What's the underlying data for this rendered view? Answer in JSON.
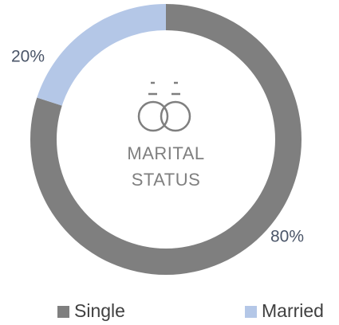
{
  "chart_data": {
    "type": "donut",
    "categories": [
      "Single",
      "Married"
    ],
    "values": [
      80,
      20
    ],
    "value_labels": [
      "80%",
      "20%"
    ],
    "colors": [
      "#7f7f7f",
      "#b4c7e7"
    ],
    "center_text": [
      "MARITAL",
      "STATUS"
    ],
    "legend": "bottom"
  }
}
